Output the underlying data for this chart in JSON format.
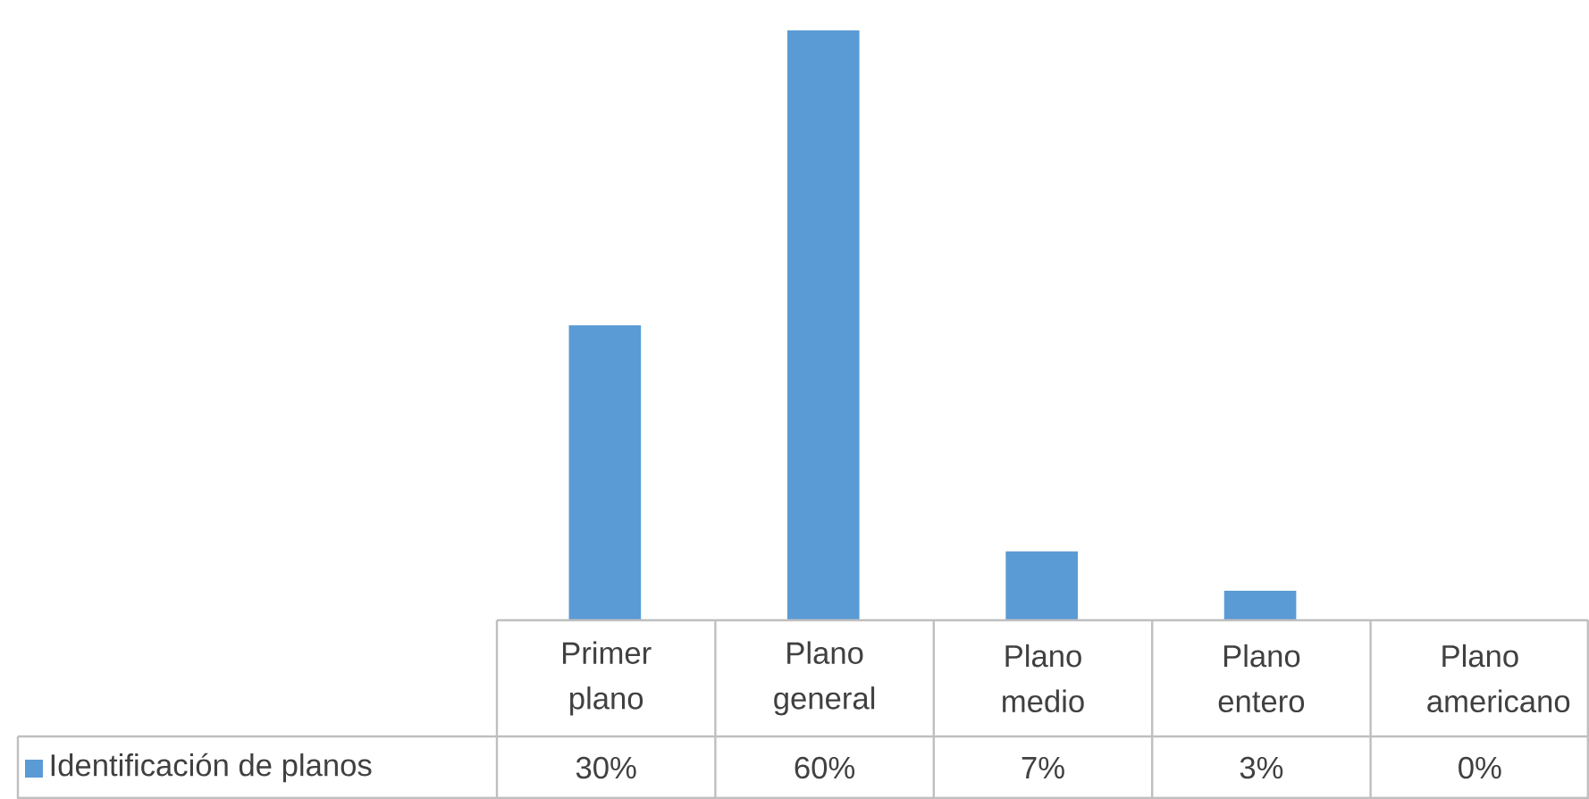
{
  "chart_data": {
    "type": "bar",
    "categories": [
      "Primer plano",
      "Plano general",
      "Plano medio",
      "Plano entero",
      "Plano americano"
    ],
    "series": [
      {
        "name": "Identificación de planos",
        "color": "#5b9bd5",
        "values": [
          30,
          60,
          7,
          3,
          0
        ],
        "value_labels": [
          "30%",
          "60%",
          "7%",
          "3%",
          "0%"
        ]
      }
    ],
    "legend": "bottom"
  }
}
